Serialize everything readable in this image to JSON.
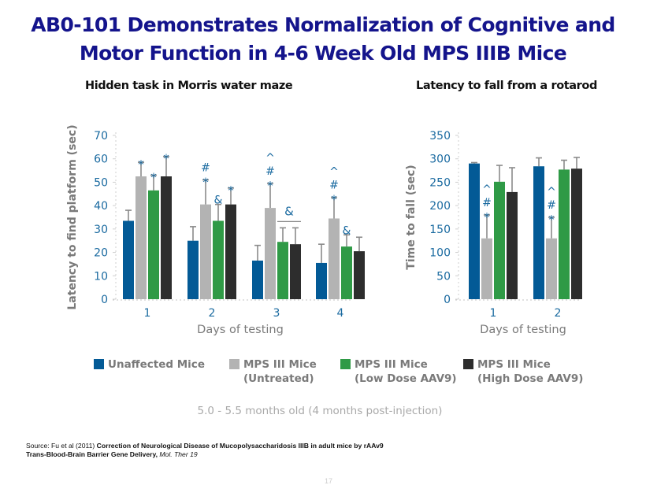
{
  "slide": {
    "title_line1": "AB0-101 Demonstrates Normalization of Cognitive and",
    "title_line2": "Motor Function in 4-6 Week Old MPS IIIB Mice",
    "age_note": "5.0 - 5.5 months old (4 months post-injection)",
    "source_prefix": "Source: Fu et al (2011) ",
    "source_bold": "Correction of Neurological Disease of Mucopolysaccharidosis IIIB in adult mice by rAAv9  Trans-Blood-Brain Barrier Gene Delivery,",
    "source_italic": " Mol. Ther 19",
    "page_number": "17"
  },
  "colors": {
    "unaffected": "#035a96",
    "untreated": "#b3b3b3",
    "low_dose": "#2f9a46",
    "high_dose": "#2d2d2d",
    "tick_label": "#1a6aa0",
    "annotation": "#1a6aa0",
    "axis_title": "#7a7a7a",
    "error_bar": "#8a8a8a"
  },
  "legend": [
    {
      "key": "unaffected",
      "line1": "Unaffected Mice",
      "line2": ""
    },
    {
      "key": "untreated",
      "line1": "MPS III Mice",
      "line2": "(Untreated)"
    },
    {
      "key": "low_dose",
      "line1": "MPS III Mice",
      "line2": "(Low Dose AAV9)"
    },
    {
      "key": "high_dose",
      "line1": "MPS III Mice",
      "line2": "(High Dose AAV9)"
    }
  ],
  "chart_data": [
    {
      "type": "bar",
      "title": "Hidden task in Morris water maze",
      "xlabel": "Days of testing",
      "ylabel": "Latency to find platform (sec)",
      "categories": [
        "1",
        "2",
        "3",
        "4"
      ],
      "ylim": [
        0,
        70
      ],
      "yticks": [
        0,
        10,
        20,
        30,
        40,
        50,
        60,
        70
      ],
      "grid": false,
      "legend_position": "bottom",
      "series": [
        {
          "name": "Unaffected Mice",
          "key": "unaffected",
          "values": [
            33.5,
            25,
            16.5,
            15.5
          ],
          "errors": [
            4.5,
            6,
            6.5,
            8
          ]
        },
        {
          "name": "MPS III Mice (Untreated)",
          "key": "untreated",
          "values": [
            52.5,
            40.5,
            39,
            34.5
          ],
          "errors": [
            6,
            10.5,
            10.5,
            9
          ]
        },
        {
          "name": "MPS III Mice (Low Dose AAV9)",
          "key": "low_dose",
          "values": [
            46.5,
            33.5,
            24.5,
            22.5
          ],
          "errors": [
            6.5,
            7,
            6,
            5
          ]
        },
        {
          "name": "MPS III Mice (High Dose AAV9)",
          "key": "high_dose",
          "values": [
            52.5,
            40.5,
            23.5,
            20.5
          ],
          "errors": [
            8.5,
            7,
            7,
            6
          ]
        }
      ],
      "annotations": [
        {
          "category": 0,
          "series": 1,
          "marks": [
            "*"
          ]
        },
        {
          "category": 0,
          "series": 2,
          "marks": [
            "*"
          ]
        },
        {
          "category": 0,
          "series": 3,
          "marks": [
            "*"
          ]
        },
        {
          "category": 1,
          "series": 1,
          "marks": [
            "*",
            "#"
          ]
        },
        {
          "category": 1,
          "series": 2,
          "marks": [
            "&"
          ]
        },
        {
          "category": 1,
          "series": 3,
          "marks": [
            "*"
          ]
        },
        {
          "category": 2,
          "series": 1,
          "marks": [
            "*",
            "#",
            "^"
          ]
        },
        {
          "category": 2,
          "series": "2-3",
          "marks": [
            "&"
          ],
          "bracket": true
        },
        {
          "category": 3,
          "series": 1,
          "marks": [
            "*",
            "#",
            "^"
          ]
        },
        {
          "category": 3,
          "series": 2,
          "marks": [
            "&"
          ]
        }
      ]
    },
    {
      "type": "bar",
      "title": "Latency to fall from a rotarod",
      "xlabel": "Days of testing",
      "ylabel": "Time to fall (sec)",
      "categories": [
        "1",
        "2"
      ],
      "ylim": [
        0,
        350
      ],
      "yticks": [
        0,
        50,
        100,
        150,
        200,
        250,
        300,
        350
      ],
      "grid": false,
      "legend_position": "bottom",
      "series": [
        {
          "name": "Unaffected Mice",
          "key": "unaffected",
          "values": [
            290,
            284
          ],
          "errors": [
            2,
            18
          ]
        },
        {
          "name": "MPS III Mice (Untreated)",
          "key": "untreated",
          "values": [
            130,
            130
          ],
          "errors": [
            50,
            45
          ]
        },
        {
          "name": "MPS III Mice (Low Dose AAV9)",
          "key": "low_dose",
          "values": [
            251,
            277
          ],
          "errors": [
            35,
            20
          ]
        },
        {
          "name": "MPS III Mice (High Dose AAV9)",
          "key": "high_dose",
          "values": [
            229,
            279
          ],
          "errors": [
            52,
            24
          ]
        }
      ],
      "annotations": [
        {
          "category": 0,
          "series": 1,
          "marks": [
            "*",
            "#",
            "^"
          ]
        },
        {
          "category": 1,
          "series": 1,
          "marks": [
            "*",
            "#",
            "^"
          ]
        }
      ]
    }
  ]
}
